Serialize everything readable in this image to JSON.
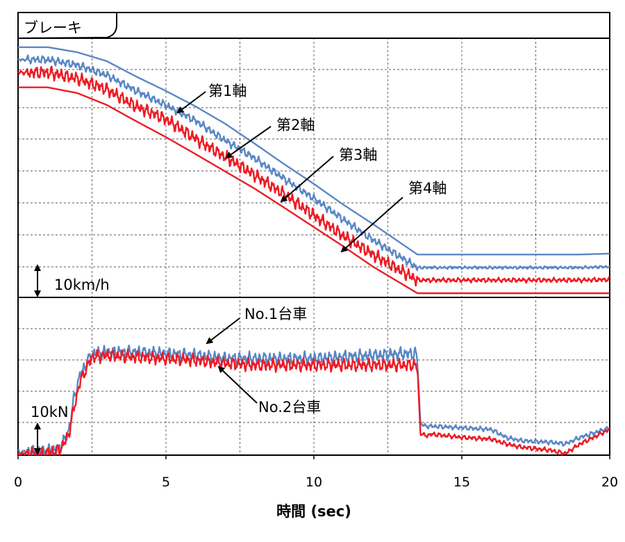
{
  "chart_data": {
    "type": "line",
    "xlabel": "時間 (sec)",
    "xlim": [
      0,
      20
    ],
    "xticks": [
      0,
      5,
      10,
      15,
      20
    ],
    "grid": true,
    "colors": {
      "blue": "#5b87c5",
      "red": "#ee1c25"
    },
    "panels": [
      {
        "title": "ブレーキ",
        "scale_label": "10km/h",
        "series": [
          {
            "name": "第1軸",
            "color": "#5b87c5",
            "noise": 0,
            "x": [
              0,
              1,
              2,
              3,
              4,
              5,
              6,
              7,
              8,
              9,
              10,
              11,
              12,
              13.5,
              14,
              16,
              18,
              19,
              20
            ],
            "y": [
              77,
              77,
              75.3,
              72.3,
              67.1,
              62.3,
              57.1,
              51.3,
              44.6,
              37.7,
              31.1,
              24.1,
              17.6,
              7.4,
              7.4,
              7.4,
              7.4,
              7.4,
              7.7
            ]
          },
          {
            "name": "第2軸",
            "color": "#5b87c5",
            "noise": 0.8,
            "x": [
              0,
              1,
              2,
              3,
              4,
              5,
              6,
              7,
              8,
              9,
              10,
              11,
              12,
              13.5,
              14,
              16,
              18,
              19,
              20
            ],
            "y": [
              72.8,
              72.8,
              71,
              67.6,
              62.3,
              57.5,
              52.3,
              45.7,
              39.7,
              32.8,
              26.2,
              19.1,
              12.3,
              3,
              3,
              3,
              3,
              3,
              3.3
            ]
          },
          {
            "name": "第3軸",
            "color": "#ee1c25",
            "noise": 1.3,
            "x": [
              0,
              1,
              2,
              3,
              4,
              5,
              6,
              7,
              8,
              9,
              10,
              11,
              12,
              13.5,
              14,
              16,
              18,
              19,
              20
            ],
            "y": [
              68.5,
              68.5,
              66.5,
              62.8,
              57.1,
              52.8,
              46.3,
              40.2,
              34.1,
              27.6,
              20.6,
              13.6,
              7.4,
              -1.2,
              -1.2,
              -1.2,
              -1.2,
              -1.2,
              -1.0
            ]
          },
          {
            "name": "第4軸",
            "color": "#ee1c25",
            "noise": 0,
            "x": [
              0,
              1,
              2,
              3,
              4,
              5,
              6,
              7,
              8,
              9,
              10,
              11,
              12,
              13.5,
              14,
              16,
              18,
              19,
              20
            ],
            "y": [
              63.5,
              63.5,
              61.6,
              57.6,
              52.1,
              46.8,
              41.1,
              35.3,
              29.5,
              23.1,
              16.6,
              10.1,
              3.3,
              -5.6,
              -5.6,
              -5.6,
              -5.6,
              -5.6,
              -5.6
            ]
          }
        ],
        "annotations": [
          "第1軸",
          "第2軸",
          "第3軸",
          "第4軸"
        ]
      },
      {
        "title": "",
        "scale_label": "10kN",
        "series": [
          {
            "name": "No.1台車",
            "color": "#5b87c5",
            "noise": 1.2,
            "x": [
              0,
              0.8,
              1.4,
              1.7,
              1.9,
              2.1,
              2.5,
              3,
              4,
              5,
              6,
              7,
              8,
              9,
              10,
              11,
              12,
              13,
              13.45,
              13.5,
              13.6,
              13.75,
              14,
              15,
              16,
              16.5,
              17,
              18,
              18.5,
              19,
              20
            ],
            "y": [
              1,
              1,
              2,
              7,
              18,
              25,
              31.5,
              32,
              32,
              31.5,
              31,
              30,
              30,
              30,
              30,
              30.5,
              31,
              31.5,
              31.5,
              29,
              10,
              9,
              9,
              8.5,
              8,
              5.5,
              4.5,
              4,
              3.5,
              5.5,
              8.5
            ]
          },
          {
            "name": "No.2台車",
            "color": "#ee1c25",
            "noise": 1.2,
            "x": [
              0,
              0.8,
              1.4,
              1.7,
              1.9,
              2.1,
              2.5,
              3,
              4,
              5,
              6,
              7,
              8,
              9,
              10,
              11,
              12,
              13,
              13.45,
              13.5,
              13.6,
              13.75,
              14,
              15,
              16,
              16.5,
              17,
              18,
              18.5,
              19,
              20
            ],
            "y": [
              0.5,
              0.5,
              1.5,
              6,
              15,
              23,
              30.5,
              31,
              30.5,
              30,
              29.5,
              28.5,
              28,
              28,
              28,
              28,
              28,
              28,
              28,
              27,
              7,
              6,
              6.5,
              5.5,
              5,
              3.5,
              2.5,
              1.5,
              0.5,
              3.5,
              8
            ]
          }
        ],
        "annotations": [
          "No.1台車",
          "No.2台車"
        ]
      }
    ]
  }
}
